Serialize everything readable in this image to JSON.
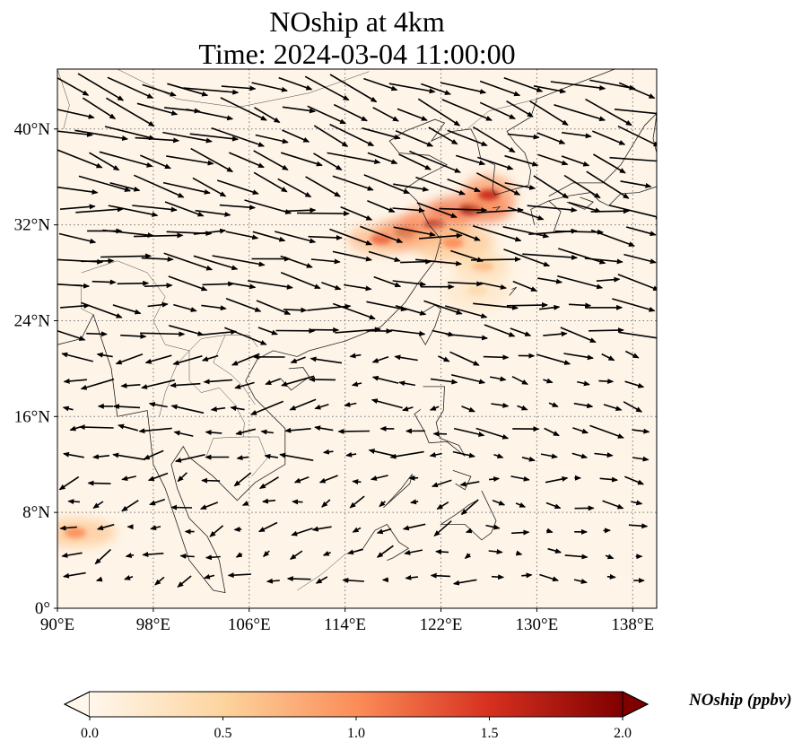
{
  "title": {
    "line1": "NOship at 4km",
    "line2": "Time: 2024-03-04 11:00:00"
  },
  "map": {
    "lon_range": [
      90,
      140
    ],
    "lat_range": [
      0,
      45
    ],
    "lon_ticks": [
      90,
      98,
      106,
      114,
      122,
      130,
      138
    ],
    "lon_tick_labels": [
      "90°E",
      "98°E",
      "106°E",
      "114°E",
      "122°E",
      "130°E",
      "138°E"
    ],
    "lat_ticks": [
      0,
      8,
      16,
      24,
      32,
      40
    ],
    "lat_tick_labels": [
      "0°",
      "8°N",
      "16°N",
      "24°N",
      "32°N",
      "40°N"
    ],
    "gridlines": true,
    "background_color": "#fef5e8",
    "coastline_color": "#222222"
  },
  "colorbar": {
    "label": "NOship (ppbv)",
    "min": 0.0,
    "max": 2.0,
    "ticks": [
      0.0,
      0.5,
      1.0,
      1.5,
      2.0
    ],
    "tick_labels": [
      "0.0",
      "0.5",
      "1.0",
      "1.5",
      "2.0"
    ],
    "colormap": "OrRd",
    "colors": [
      "#fff7ec",
      "#fdd49e",
      "#fc8d59",
      "#d7301f",
      "#7f0000"
    ],
    "extend": "both"
  },
  "hotspots": [
    {
      "lon": 119,
      "lat": 31.3,
      "value": 1.9
    },
    {
      "lon": 121.5,
      "lat": 32.0,
      "value": 1.7
    },
    {
      "lon": 124.5,
      "lat": 33.3,
      "value": 1.9
    },
    {
      "lon": 126,
      "lat": 34.5,
      "value": 1.6
    },
    {
      "lon": 117,
      "lat": 30.8,
      "value": 1.2
    },
    {
      "lon": 123,
      "lat": 30.5,
      "value": 1.0
    },
    {
      "lon": 125.5,
      "lat": 28.5,
      "value": 0.7
    },
    {
      "lon": 125,
      "lat": 26.5,
      "value": 0.4
    },
    {
      "lon": 91.5,
      "lat": 6.3,
      "value": 1.0
    }
  ]
}
